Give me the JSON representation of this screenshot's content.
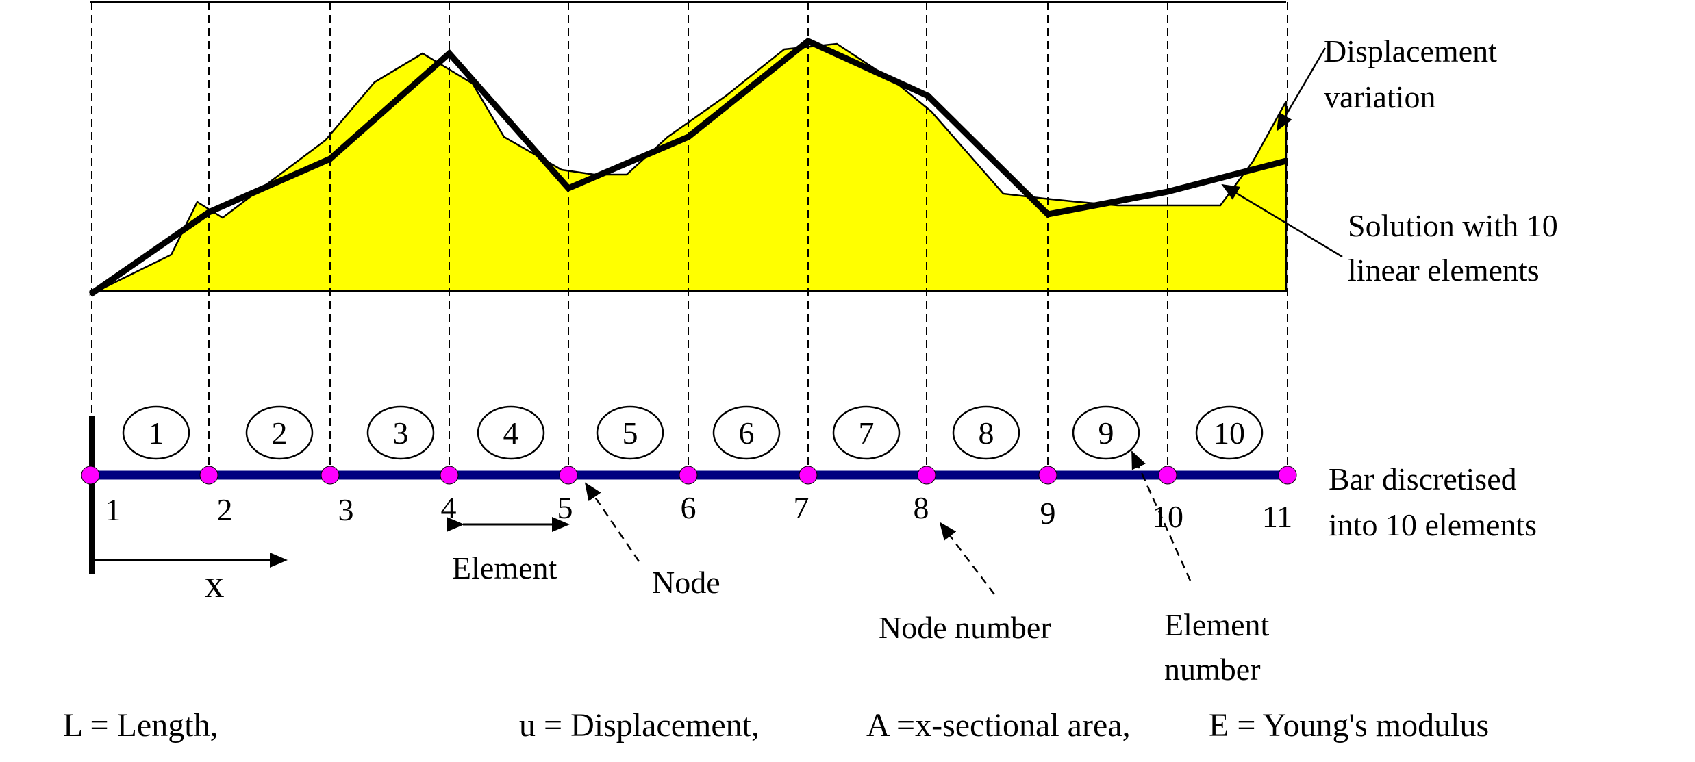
{
  "colors": {
    "fill": "#ffff00",
    "bar": "#000080",
    "node": "#ff00ff",
    "line": "#000000",
    "background": "#ffffff"
  },
  "element_numbers": [
    "1",
    "2",
    "3",
    "4",
    "5",
    "6",
    "7",
    "8",
    "9",
    "10"
  ],
  "node_numbers": [
    "1",
    "2",
    "3",
    "4",
    "5",
    "6",
    "7",
    "8",
    "9",
    "10",
    "11"
  ],
  "labels": {
    "displacement_variation": [
      "Displacement",
      "variation"
    ],
    "solution": [
      "Solution with 10",
      "linear elements"
    ],
    "bar_discretised": [
      "Bar discretised",
      "into 10 elements"
    ],
    "element": "Element",
    "node": "Node",
    "node_number": "Node number",
    "element_number": [
      "Element",
      "number"
    ],
    "x_axis": "x"
  },
  "legend": {
    "length": "L = Length,",
    "displacement": "u = Displacement,",
    "area": "A =x-sectional area,",
    "modulus": "E = Young's modulus"
  }
}
